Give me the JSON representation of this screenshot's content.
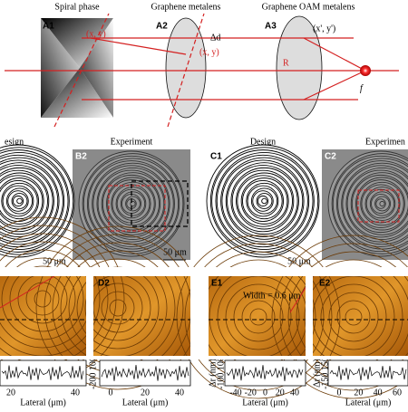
{
  "top": {
    "titles": [
      "Spiral phase",
      "Graphene metalens",
      "Graphene OAM metalens"
    ],
    "labels": [
      "A1",
      "A2",
      "A3"
    ],
    "annotations": [
      "(x, y)",
      "Δd",
      "(x, y)",
      "(x', y')",
      "R",
      "f"
    ]
  },
  "middle": {
    "titles": [
      "esign",
      "Experiment",
      "Design",
      "Experimen"
    ],
    "labels": [
      "B2",
      "C1",
      "C2"
    ],
    "scale_bars": [
      "50 μm",
      "50 μm",
      "50 μm"
    ]
  },
  "bottom": {
    "labels": [
      "D2",
      "E1",
      "E2"
    ],
    "annotation": "Width = 0.6 μm",
    "y_axis_labels": [
      "Δr (nm)",
      "Δr (nm)"
    ],
    "y_ticks": [
      "-200 100",
      "-100 100",
      "-150 150"
    ],
    "x_axis_label": "Lateral (μm)",
    "x_ticks": [
      [
        "20",
        "40"
      ],
      [
        "0",
        "20",
        "40"
      ],
      [
        "-40",
        "-20",
        "0",
        "20",
        "40"
      ],
      [
        "0",
        "20",
        "40",
        "60"
      ]
    ]
  }
}
